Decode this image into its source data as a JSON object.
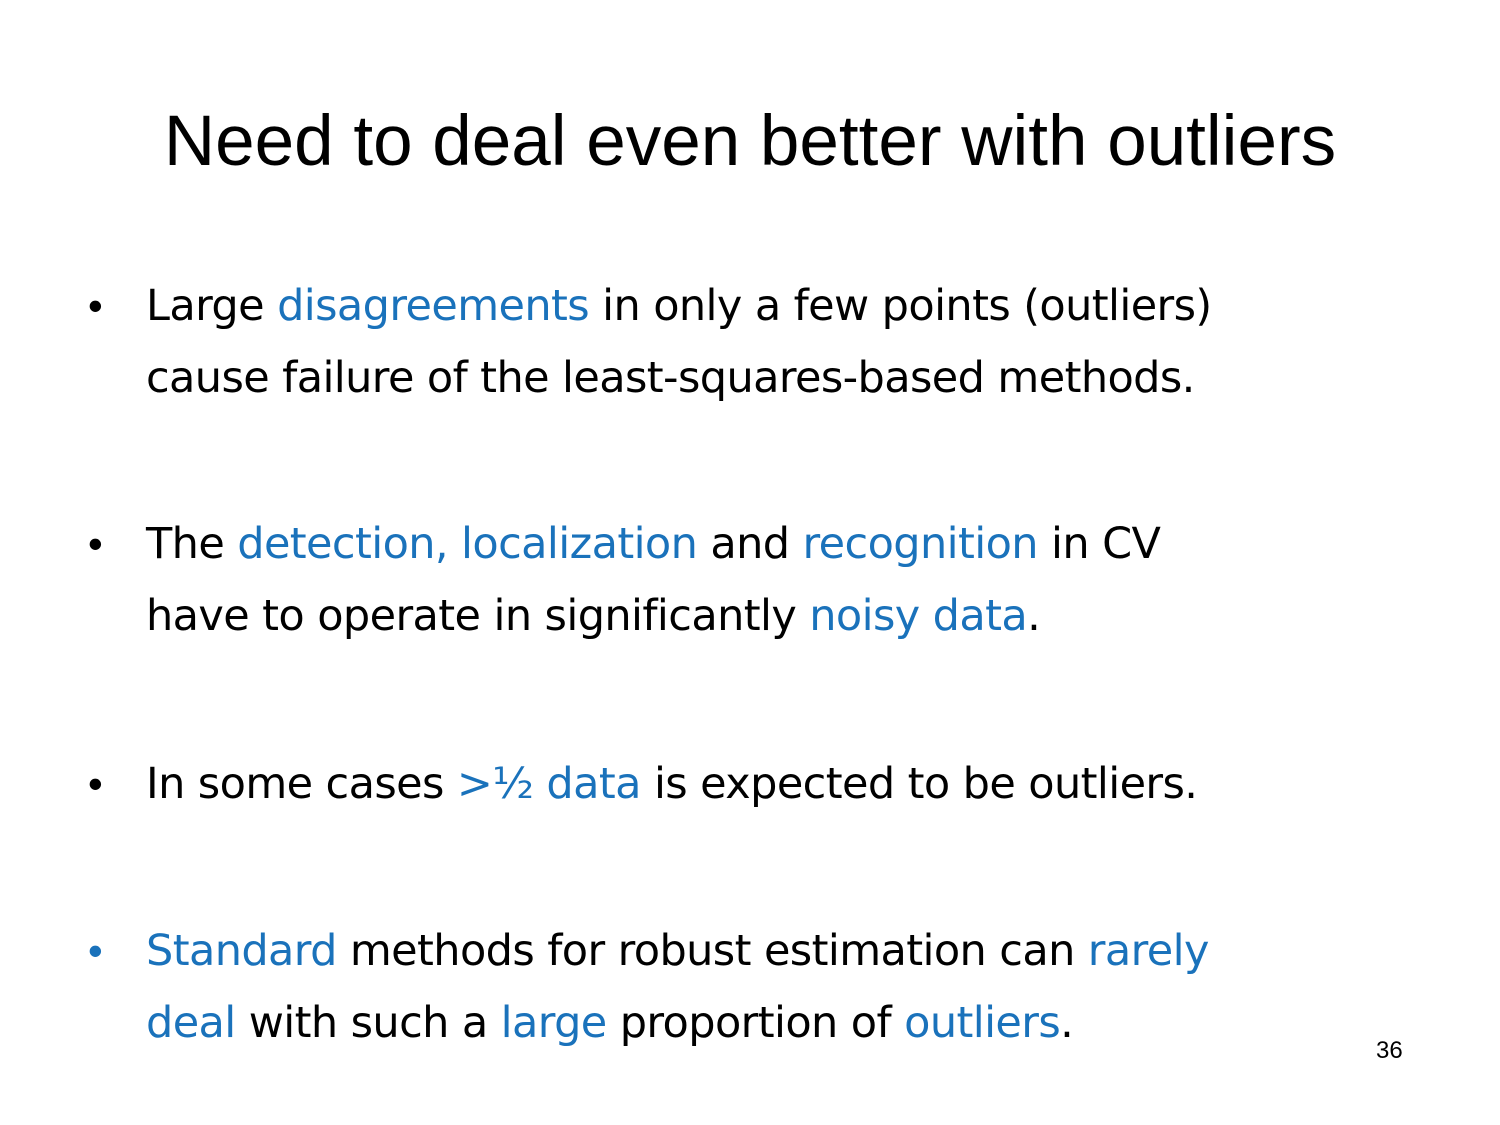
{
  "slide": {
    "title": "Need to deal even better with outliers",
    "page_number": "36",
    "accent_color": "#1a72bb",
    "bullets": [
      {
        "line1": {
          "a": "Large ",
          "b": "disagreements",
          "c": " in only a few points (outliers)"
        },
        "line2": "cause failure of the least-squares-based methods."
      },
      {
        "line1": {
          "a": "The ",
          "b": "detection, localization",
          "c": " and ",
          "d": "recognition",
          "e": " in CV"
        },
        "line2": {
          "a": "have to operate in significantly ",
          "b": "noisy data",
          "c": "."
        }
      },
      {
        "line1": {
          "a": "In some cases ",
          "b": ">½ data",
          "c": " is expected to be outliers."
        }
      },
      {
        "line1": {
          "a": "Standard",
          "b": " methods for robust estimation can ",
          "c": "rarely"
        },
        "line2": {
          "a": "deal",
          "b": " with such a ",
          "c": "large",
          "d": " proportion of ",
          "e": "outliers",
          "f": "."
        }
      }
    ]
  }
}
